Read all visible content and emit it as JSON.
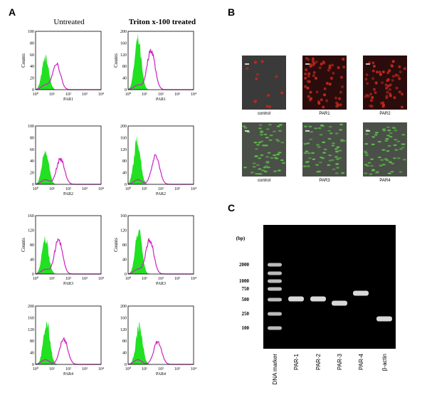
{
  "panel_a": {
    "letter": "A",
    "col_headers": [
      "Untreated",
      "Triton x-100 treated"
    ],
    "x_ticks": [
      "10⁰",
      "10¹",
      "10²",
      "10³",
      "10⁴"
    ],
    "plots": [
      {
        "x_label": "PAR1",
        "y_label": "Counts",
        "y_ticks": [
          "0",
          "20",
          "40",
          "60",
          "80",
          "100"
        ]
      },
      {
        "x_label": "PAR1",
        "y_label": "Counts",
        "y_ticks": [
          "0",
          "40",
          "80",
          "120",
          "160",
          "200"
        ]
      },
      {
        "x_label": "PAR2",
        "y_ticks": [
          "0",
          "20",
          "40",
          "60",
          "80",
          "100"
        ]
      },
      {
        "x_label": "PAR2",
        "y_ticks": [
          "0",
          "40",
          "80",
          "120",
          "160",
          "200"
        ]
      },
      {
        "x_label": "PAR3",
        "y_label": "Counts",
        "y_ticks": [
          "0",
          "40",
          "80",
          "120",
          "160"
        ]
      },
      {
        "x_label": "PAR3",
        "y_label": "Counts",
        "y_ticks": [
          "0",
          "40",
          "80",
          "120",
          "160"
        ]
      },
      {
        "x_label": "PAR4",
        "y_ticks": [
          "0",
          "40",
          "80",
          "120",
          "160",
          "200"
        ]
      },
      {
        "x_label": "PAR4",
        "y_ticks": [
          "0",
          "40",
          "80",
          "120",
          "160",
          "200"
        ]
      }
    ]
  },
  "panel_b": {
    "letter": "B",
    "tiles": [
      "control",
      "PAR1",
      "PAR2",
      "control",
      "PAR3",
      "PAR4"
    ]
  },
  "panel_c": {
    "letter": "C",
    "unit": "(bp)",
    "sizes": [
      "2000",
      "1000",
      "750",
      "500",
      "250",
      "100"
    ],
    "lanes": [
      "DNA marker",
      "PAR-1",
      "PAR-2",
      "PAR-3",
      "PAR-4",
      "β-actin"
    ]
  }
}
